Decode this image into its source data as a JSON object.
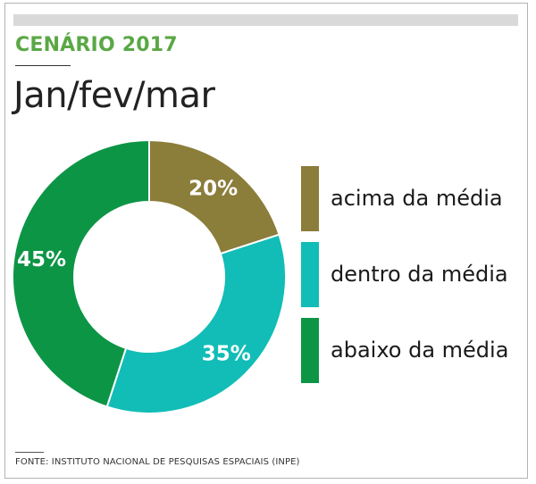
{
  "header": {
    "title": "CENÁRIO 2017",
    "title_color": "#5aa845",
    "subtitle": "Jan/fev/mar"
  },
  "chart_data": {
    "type": "pie",
    "donut": true,
    "categories": [
      "acima da média",
      "dentro da média",
      "abaixo da média"
    ],
    "values": [
      20,
      35,
      45
    ],
    "labels": [
      "20%",
      "35%",
      "45%"
    ],
    "colors": [
      "#8b7d3a",
      "#11bdb6",
      "#0d9546"
    ],
    "legend": "right"
  },
  "footer": {
    "source": "FONTE: INSTITUTO NACIONAL DE PESQUISAS ESPACIAIS (INPE)"
  }
}
